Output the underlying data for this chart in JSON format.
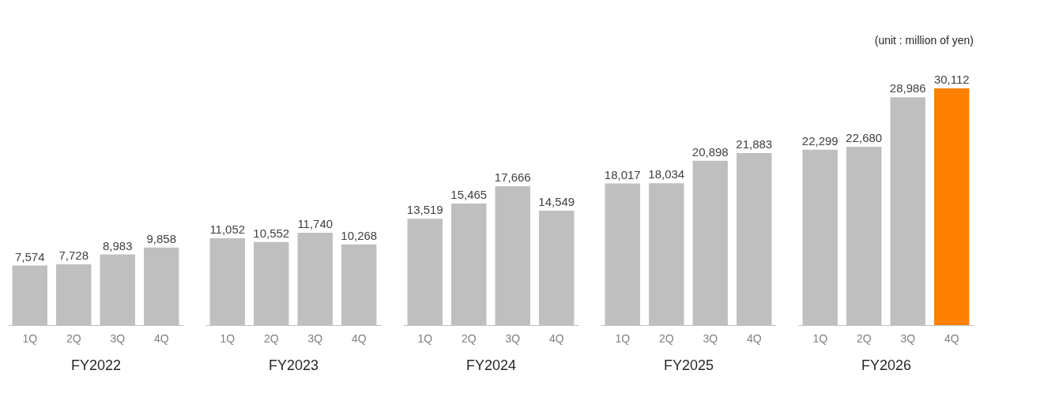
{
  "chart_data": [
    {
      "type": "bar",
      "xlabel": "FY2022",
      "categories": [
        "1Q",
        "2Q",
        "3Q",
        "4Q"
      ],
      "values": [
        7574,
        7728,
        8983,
        9858
      ],
      "colors": [
        "#bfbfbf",
        "#bfbfbf",
        "#bfbfbf",
        "#bfbfbf"
      ],
      "value_labels": [
        "7,574",
        "7,728",
        "8,983",
        "9,858"
      ]
    },
    {
      "type": "bar",
      "xlabel": "FY2023",
      "categories": [
        "1Q",
        "2Q",
        "3Q",
        "4Q"
      ],
      "values": [
        11052,
        10552,
        11740,
        10268
      ],
      "colors": [
        "#bfbfbf",
        "#bfbfbf",
        "#bfbfbf",
        "#bfbfbf"
      ],
      "value_labels": [
        "11,052",
        "10,552",
        "11,740",
        "10,268"
      ]
    },
    {
      "type": "bar",
      "xlabel": "FY2024",
      "categories": [
        "1Q",
        "2Q",
        "3Q",
        "4Q"
      ],
      "values": [
        13519,
        15465,
        17666,
        14549
      ],
      "colors": [
        "#bfbfbf",
        "#bfbfbf",
        "#bfbfbf",
        "#bfbfbf"
      ],
      "value_labels": [
        "13,519",
        "15,465",
        "17,666",
        "14,549"
      ]
    },
    {
      "type": "bar",
      "xlabel": "FY2025",
      "categories": [
        "1Q",
        "2Q",
        "3Q",
        "4Q"
      ],
      "values": [
        18017,
        18034,
        20898,
        21883
      ],
      "colors": [
        "#bfbfbf",
        "#bfbfbf",
        "#bfbfbf",
        "#bfbfbf"
      ],
      "value_labels": [
        "18,017",
        "18,034",
        "20,898",
        "21,883"
      ]
    },
    {
      "type": "bar",
      "xlabel": "FY2026",
      "categories": [
        "1Q",
        "2Q",
        "3Q",
        "4Q"
      ],
      "values": [
        22299,
        22680,
        28986,
        30112
      ],
      "colors": [
        "#bfbfbf",
        "#bfbfbf",
        "#bfbfbf",
        "#ff8000"
      ],
      "value_labels": [
        "22,299",
        "22,680",
        "28,986",
        "30,112"
      ],
      "annotations": [
        "(unit : million of yen)"
      ]
    }
  ]
}
